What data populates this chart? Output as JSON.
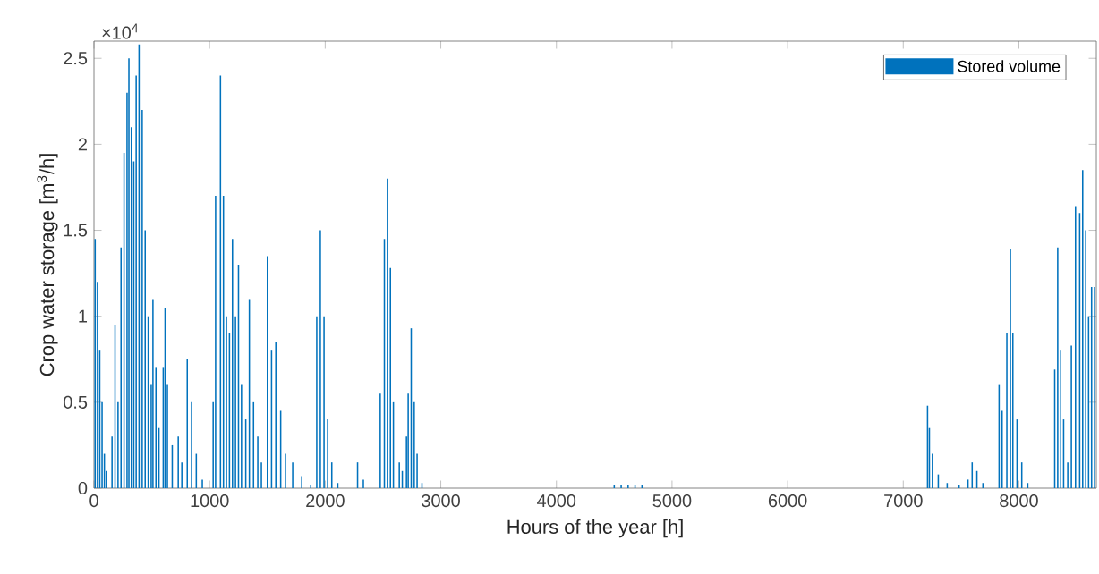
{
  "chart_data": {
    "type": "bar",
    "xlabel": "Hours of the year [h]",
    "ylabel": "Crop water storage [m$^{3}$/h]",
    "annotations": [
      "×10$^{4}$"
    ],
    "x": [
      10,
      30,
      50,
      70,
      90,
      110,
      156,
      182,
      208,
      234,
      260,
      286,
      302,
      323,
      344,
      365,
      390,
      417,
      443,
      469,
      495,
      510,
      536,
      562,
      599,
      615,
      635,
      677,
      729,
      760,
      807,
      844,
      885,
      937,
      1031,
      1052,
      1094,
      1120,
      1146,
      1172,
      1198,
      1224,
      1250,
      1276,
      1313,
      1344,
      1380,
      1417,
      1448,
      1500,
      1536,
      1573,
      1615,
      1656,
      1719,
      1797,
      1875,
      1927,
      1958,
      1990,
      2021,
      2057,
      2109,
      2280,
      2330,
      2476,
      2512,
      2538,
      2564,
      2590,
      2641,
      2667,
      2703,
      2718,
      2744,
      2770,
      2795,
      2837,
      4500,
      4560,
      4620,
      4680,
      4740,
      7210,
      7226,
      7252,
      7303,
      7380,
      7483,
      7560,
      7596,
      7637,
      7689,
      7829,
      7855,
      7896,
      7927,
      7948,
      7984,
      8025,
      8077,
      8310,
      8336,
      8362,
      8387,
      8423,
      8454,
      8490,
      8526,
      8552,
      8578,
      8603,
      8629,
      8655
    ],
    "series": [
      {
        "name": "Stored volume",
        "color": "#0072bd",
        "values": [
          1.45,
          1.2,
          0.8,
          0.5,
          0.2,
          0.1,
          0.3,
          0.95,
          0.5,
          1.4,
          1.95,
          2.3,
          2.5,
          2.1,
          1.9,
          2.4,
          2.58,
          2.2,
          1.5,
          1.0,
          0.6,
          1.1,
          0.7,
          0.35,
          0.7,
          1.05,
          0.6,
          0.25,
          0.3,
          0.15,
          0.75,
          0.5,
          0.2,
          0.05,
          0.5,
          1.7,
          2.4,
          1.7,
          1.0,
          0.9,
          1.45,
          1.0,
          1.3,
          0.6,
          0.4,
          1.1,
          0.5,
          0.3,
          0.15,
          1.35,
          0.8,
          0.85,
          0.45,
          0.2,
          0.15,
          0.07,
          0.02,
          1.0,
          1.5,
          1.0,
          0.4,
          0.15,
          0.03,
          0.15,
          0.05,
          0.55,
          1.45,
          1.8,
          1.28,
          0.5,
          0.15,
          0.1,
          0.3,
          0.55,
          0.93,
          0.5,
          0.2,
          0.03,
          0.02,
          0.02,
          0.02,
          0.02,
          0.02,
          0.48,
          0.35,
          0.2,
          0.08,
          0.03,
          0.02,
          0.05,
          0.15,
          0.1,
          0.03,
          0.6,
          0.45,
          0.9,
          1.39,
          0.9,
          0.4,
          0.15,
          0.03,
          0.69,
          1.4,
          0.8,
          0.4,
          0.15,
          0.83,
          1.64,
          1.6,
          1.85,
          1.5,
          1.0,
          1.17,
          1.17
        ]
      }
    ],
    "xlim": [
      0,
      8670
    ],
    "ylim": [
      0,
      2.6
    ],
    "xticks": [
      0,
      1000,
      2000,
      3000,
      4000,
      5000,
      6000,
      7000,
      8000
    ],
    "yticks": [
      0,
      0.5,
      1,
      1.5,
      2,
      2.5
    ],
    "legend": "top right"
  }
}
